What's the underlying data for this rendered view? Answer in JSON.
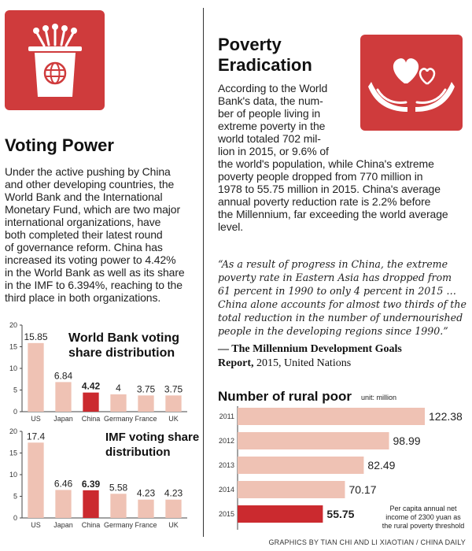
{
  "voting": {
    "title": "Voting Power",
    "icon": "podium-globe-icon",
    "lines": [
      "Under the active pushing by China",
      "and other developing countries, the",
      "World Bank and the International",
      "Monetary Fund, which are two major",
      "international organizations, have",
      "both completed their latest round",
      "of governance reform. China has",
      "increased its voting power to 4.42%",
      "in the World Bank as well as its share",
      "in the IMF to 6.394%, reaching to the",
      "third place in both organizations."
    ]
  },
  "poverty": {
    "title_line1": "Poverty",
    "title_line2": "Eradication",
    "icon": "hands-hearts-icon",
    "lines": [
      "According to the World",
      "Bank's data, the num-",
      "ber of people living in",
      "extreme poverty in the",
      "world totaled 702 mil-",
      "lion in 2015, or 9.6% of",
      "the world's population, while China's extreme",
      "poverty people dropped from 770 million in",
      "1978 to 55.75 million in 2015. China's average",
      "annual poverty reduction rate is 2.2% before",
      "the Millennium, far exceeding the world average",
      "level."
    ],
    "quote_lines": [
      "“As a result of progress in China, the extreme",
      "poverty rate in Eastern Asia has dropped from",
      "61 percent in 1990 to only 4 percent in 2015 …",
      "China alone accounts for almost two thirds of the",
      "total reduction in the number of undernourished",
      "people in the developing regions since 1990.”"
    ],
    "attribution_bold1": "— The Millennium Development Goals",
    "attribution_bold2": "Report,",
    "attribution_rest": " 2015, United Nations"
  },
  "credit": "GRAPHICS BY TIAN CHI AND LI XIAOTIAN / CHINA DAILY",
  "colors": {
    "bar": "#efc2b4",
    "highlight": "#cb2a2f",
    "icon_bg": "#cf3b3c"
  },
  "chart_data": [
    {
      "type": "bar",
      "title_line1": "World Bank voting",
      "title_line2": "share distribution",
      "categories": [
        "US",
        "Japan",
        "China",
        "Germany",
        "France",
        "UK"
      ],
      "values": [
        15.85,
        6.84,
        4.42,
        4,
        3.75,
        3.75
      ],
      "value_labels": [
        "15.85",
        "6.84",
        "4.42",
        "4",
        "3.75",
        "3.75"
      ],
      "highlight": "China",
      "yticks": [
        "0",
        "5",
        "10",
        "15",
        "20"
      ],
      "ylim": [
        0,
        20
      ]
    },
    {
      "type": "bar",
      "title_line1": "IMF voting share",
      "title_line2": "distribution",
      "categories": [
        "US",
        "Japan",
        "China",
        "Germany",
        "France",
        "UK"
      ],
      "values": [
        17.4,
        6.46,
        6.39,
        5.58,
        4.23,
        4.23
      ],
      "value_labels": [
        "17.4",
        "6.46",
        "6.39",
        "5.58",
        "4.23",
        "4.23"
      ],
      "highlight": "China",
      "yticks": [
        "0",
        "5",
        "10",
        "15",
        "20"
      ],
      "ylim": [
        0,
        20
      ]
    },
    {
      "type": "bar",
      "orientation": "horizontal",
      "title": "Number of rural poor",
      "unit": "unit: million",
      "categories": [
        "2011",
        "2012",
        "2013",
        "2014",
        "2015"
      ],
      "values": [
        122.38,
        98.99,
        82.49,
        70.17,
        55.75
      ],
      "value_labels": [
        "122.38",
        "98.99",
        "82.49",
        "70.17",
        "55.75"
      ],
      "highlight": "2015",
      "xlim": [
        0,
        122.38
      ],
      "note_lines": [
        "Per capita annual net",
        "income of 2300 yuan as",
        "the rural poverty threshold"
      ]
    }
  ]
}
